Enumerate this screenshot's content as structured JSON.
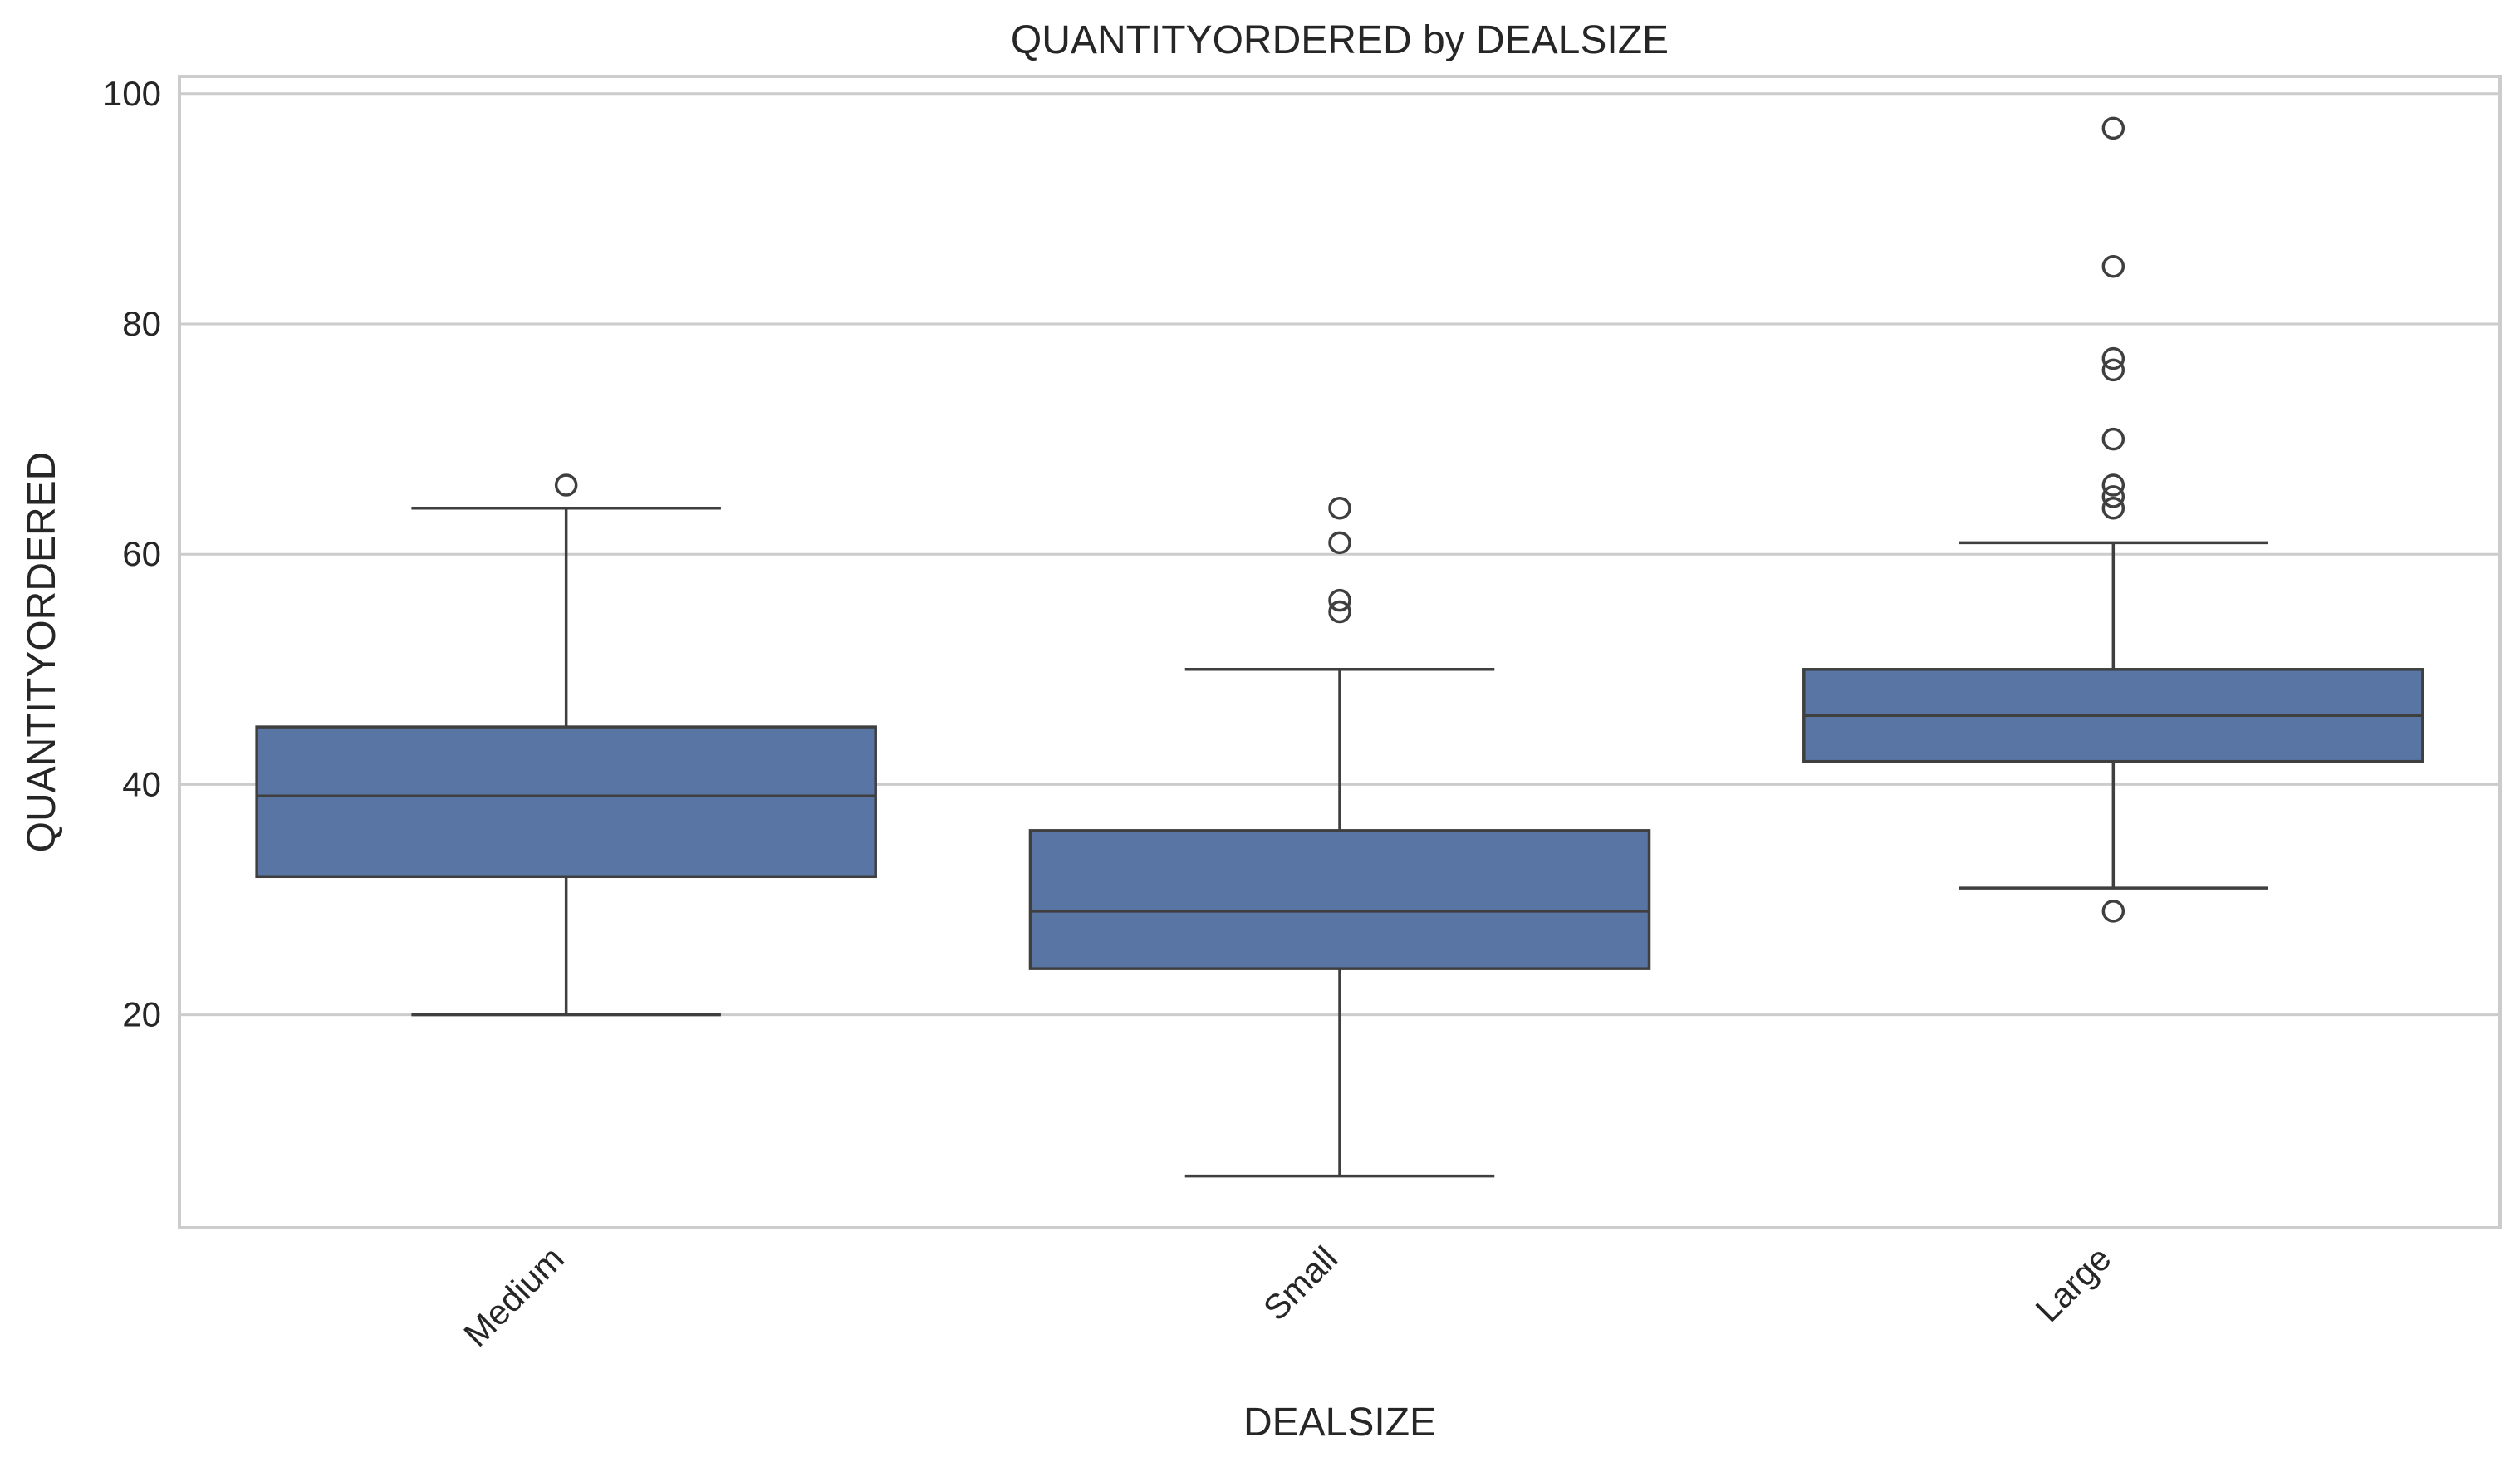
{
  "chart_data": {
    "type": "box",
    "title": "QUANTITYORDERED by DEALSIZE",
    "xlabel": "DEALSIZE",
    "ylabel": "QUANTITYORDERED",
    "categories": [
      "Medium",
      "Small",
      "Large"
    ],
    "ylim": [
      1.5,
      101.5
    ],
    "yticks": [
      20,
      40,
      60,
      80,
      100
    ],
    "grid": true,
    "x_tick_rotation": 45,
    "box_color": "#5875a4",
    "line_color": "#3f3f3f",
    "grid_color": "#cccccc",
    "frame_color": "#cccccc",
    "boxes": [
      {
        "category": "Medium",
        "whisker_low": 20,
        "q1": 32,
        "median": 39,
        "q3": 45,
        "whisker_high": 64,
        "outliers": [
          66
        ]
      },
      {
        "category": "Small",
        "whisker_low": 6,
        "q1": 24,
        "median": 29,
        "q3": 36,
        "whisker_high": 50,
        "outliers": [
          55,
          56,
          61,
          64
        ]
      },
      {
        "category": "Large",
        "whisker_low": 31,
        "q1": 42,
        "median": 46,
        "q3": 50,
        "whisker_high": 61,
        "outliers": [
          29,
          64,
          65,
          66,
          70,
          76,
          77,
          85,
          97
        ]
      }
    ]
  }
}
